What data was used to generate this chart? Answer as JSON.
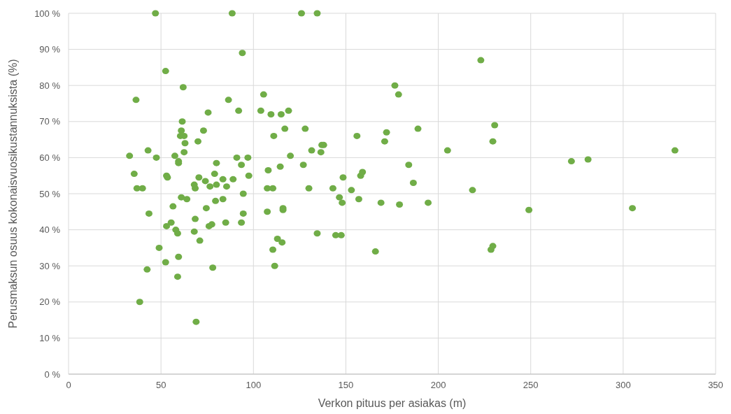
{
  "chart_data": {
    "type": "scatter",
    "xlabel": "Verkon pituus per asiakas (m)",
    "ylabel": "Perusmaksun osuus kokonaisvuosikustannuksista (%)",
    "xlim": [
      0,
      350
    ],
    "xticks": [
      0,
      50,
      100,
      150,
      200,
      250,
      300,
      350
    ],
    "ylim": [
      0,
      100
    ],
    "yticks": [
      {
        "value": 0,
        "label": "0 %"
      },
      {
        "value": 10,
        "label": "10 %"
      },
      {
        "value": 20,
        "label": "20 %"
      },
      {
        "value": 30,
        "label": "30 %"
      },
      {
        "value": 40,
        "label": "40 %"
      },
      {
        "value": 50,
        "label": "50 %"
      },
      {
        "value": 60,
        "label": "60 %"
      },
      {
        "value": 70,
        "label": "70 %"
      },
      {
        "value": 80,
        "label": "80 %"
      },
      {
        "value": 90,
        "label": "90 %"
      },
      {
        "value": 100,
        "label": "100 %"
      }
    ],
    "grid": true,
    "marker": "circle",
    "series": [
      {
        "color": "#70ad47",
        "x": [
          33,
          35.5,
          36.5,
          37,
          38.5,
          40,
          42.5,
          43,
          43.5,
          47,
          47.5,
          49,
          52.5,
          52.5,
          53,
          53,
          53.5,
          55.5,
          56.5,
          57.5,
          58,
          59,
          59,
          59.5,
          59.5,
          59.5,
          60.5,
          61,
          61,
          61.5,
          62,
          62.5,
          62.5,
          63,
          64,
          68,
          68,
          68.5,
          68.5,
          69,
          70,
          70.5,
          71,
          73,
          74,
          74.5,
          75.5,
          76,
          76.5,
          77.5,
          78,
          79,
          79.5,
          80,
          80,
          83.5,
          83.5,
          85,
          85.5,
          86.5,
          88.5,
          89,
          91,
          92,
          93.5,
          93.5,
          94,
          94.5,
          94.5,
          97,
          97.5,
          104,
          105.5,
          107.5,
          107.5,
          108,
          109.5,
          110.5,
          110.5,
          111,
          111.5,
          113,
          114.5,
          115,
          115.5,
          116,
          116,
          117,
          119,
          120,
          126,
          127,
          128,
          130,
          131.5,
          134.5,
          134.5,
          136.5,
          137,
          138,
          143,
          144.5,
          146.5,
          147.5,
          148,
          148.5,
          153,
          156,
          157,
          158,
          159,
          166,
          169,
          171,
          172,
          176.5,
          178.5,
          179,
          184,
          186.5,
          189,
          194.5,
          205,
          218.5,
          223,
          228.5,
          229.5,
          229.5,
          230.5,
          249,
          272,
          281,
          305,
          328
        ],
        "values": [
          60.5,
          55.5,
          76,
          51.5,
          20,
          51.5,
          29,
          62,
          44.5,
          100,
          60,
          35,
          84,
          31,
          55,
          41,
          54.5,
          42,
          46.5,
          60.5,
          40,
          39,
          27,
          59,
          58.5,
          32.5,
          66,
          67.5,
          49,
          70,
          79.5,
          66,
          61.5,
          64,
          48.5,
          39.5,
          52.5,
          51.5,
          43,
          14.5,
          64.5,
          54.5,
          37,
          67.5,
          53.5,
          46,
          72.5,
          41,
          52,
          41.5,
          29.5,
          55.5,
          48,
          58.5,
          52.5,
          48.5,
          54,
          42,
          52,
          76,
          100,
          54,
          60,
          73,
          58,
          42,
          89,
          50,
          44.5,
          60,
          55,
          73,
          77.5,
          51.5,
          45,
          56.5,
          72,
          34.5,
          51.5,
          66,
          30,
          37.5,
          57.5,
          72,
          36.5,
          45.5,
          46,
          68,
          73,
          60.5,
          100,
          58,
          68,
          51.5,
          62,
          100,
          39,
          61.5,
          63.5,
          63.5,
          51.5,
          38.5,
          49,
          38.5,
          47.5,
          54.5,
          51,
          66,
          48.5,
          55,
          56,
          34,
          47.5,
          64.5,
          67,
          80,
          77.5,
          47,
          58,
          53,
          68,
          47.5,
          62,
          51,
          87,
          34.5,
          64.5,
          35.5,
          69,
          45.5,
          59,
          59.5,
          46,
          62
        ]
      }
    ]
  }
}
